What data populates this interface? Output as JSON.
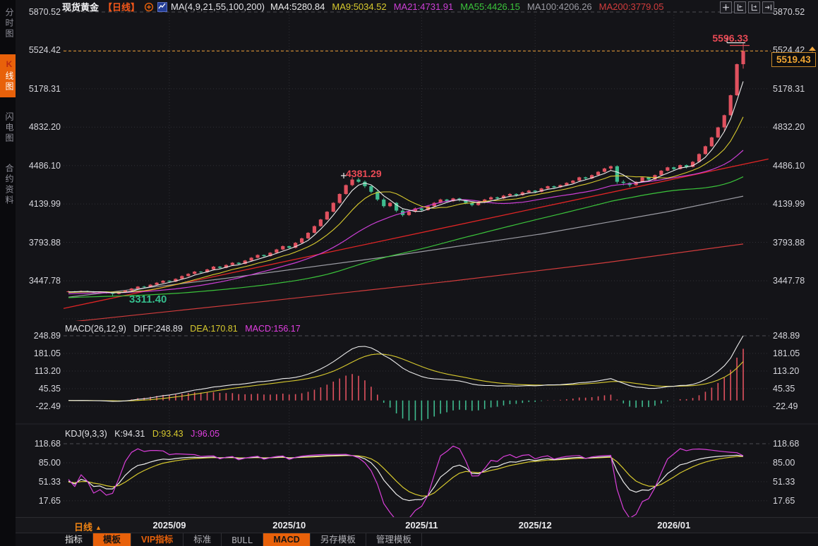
{
  "header": {
    "symbol": "现货黄金",
    "period_tag": "【日线】",
    "ma_group_label": "MA(4,9,21,55,100,200)",
    "ma_items": [
      {
        "label": "MA4:5280.84",
        "color": "#ececec"
      },
      {
        "label": "MA9:5034.52",
        "color": "#d8ca2e"
      },
      {
        "label": "MA21:4731.91",
        "color": "#cc3fd6"
      },
      {
        "label": "MA55:4426.15",
        "color": "#3bc43b"
      },
      {
        "label": "MA100:4206.26",
        "color": "#9c9ca4"
      },
      {
        "label": "MA200:3779.05",
        "color": "#d23c3c"
      }
    ],
    "toolbar_icons": [
      "crosshair-icon",
      "axis-zoom-left-icon",
      "axis-zoom-right-icon",
      "pan-exit-icon"
    ]
  },
  "sidebar": {
    "tabs": [
      {
        "label": "分时图",
        "active": false
      },
      {
        "label": "K线图",
        "active": true
      },
      {
        "label": "闪电图",
        "active": false
      },
      {
        "label": "合约资料",
        "active": false
      }
    ]
  },
  "price_axis": {
    "labels": [
      "5870.52",
      "5524.42",
      "5178.31",
      "4832.20",
      "4486.10",
      "4139.99",
      "3793.88",
      "3447.78"
    ]
  },
  "annotations": {
    "high": "5596.33",
    "peak": "4381.29",
    "low": "3311.40",
    "last_price": "5519.43"
  },
  "macd": {
    "title": "MACD(26,12,9)",
    "diff_label": "DIFF:248.89",
    "dea_label": "DEA:170.81",
    "macd_label": "MACD:156.17",
    "axis": [
      "248.89",
      "181.05",
      "113.20",
      "45.35",
      "-22.49"
    ]
  },
  "kdj": {
    "title": "KDJ(9,3,3)",
    "k_label": "K:94.31",
    "d_label": "D:93.43",
    "j_label": "J:96.05",
    "axis": [
      "118.68",
      "85.00",
      "51.33",
      "17.65"
    ]
  },
  "xaxis": {
    "period_label": "日线",
    "dates": [
      "2025/09",
      "2025/10",
      "2025/11",
      "2025/12",
      "2026/01"
    ]
  },
  "bottom_tabs": [
    {
      "label": "指标",
      "style": "plain"
    },
    {
      "label": "模板",
      "style": "active"
    },
    {
      "label": "VIP指标",
      "style": "vip"
    },
    {
      "label": "标准",
      "style": "dim"
    },
    {
      "label": "BULL",
      "style": "dim mono"
    },
    {
      "label": "MACD",
      "style": "active"
    },
    {
      "label": "另存模板",
      "style": "dim"
    },
    {
      "label": "管理模板",
      "style": "dim"
    }
  ],
  "colors": {
    "background": "#141418",
    "accent_orange": "#e8610a",
    "up_candle": "#e0515f",
    "down_candle": "#3fbc8f",
    "price_line": "#f0a036",
    "annotation_red": "#ea4a55",
    "annotation_green": "#35bd8c"
  },
  "chart_data": {
    "type": "candlestick",
    "title": "现货黄金 日线",
    "indicator_params": {
      "macd": [
        26,
        12,
        9
      ],
      "kdj": [
        9,
        3,
        3
      ],
      "ma_windows": [
        4,
        9,
        21,
        55,
        100,
        200
      ]
    },
    "ylim": [
      3085,
      5870.52
    ],
    "macd_axis_range": [
      -77,
      248.89
    ],
    "kdj_axis_range": [
      -16,
      122
    ],
    "date_tick_indices": [
      16,
      35,
      56,
      74,
      96
    ],
    "candles": [
      [
        3350,
        3358,
        3344,
        3352
      ],
      [
        3352,
        3356,
        3342,
        3348
      ],
      [
        3348,
        3360,
        3346,
        3355
      ],
      [
        3355,
        3359,
        3345,
        3350
      ],
      [
        3350,
        3354,
        3336,
        3342
      ],
      [
        3342,
        3352,
        3338,
        3347
      ],
      [
        3347,
        3350,
        3332,
        3340
      ],
      [
        3340,
        3344,
        3311.4,
        3330
      ],
      [
        3330,
        3350,
        3325,
        3345
      ],
      [
        3345,
        3365,
        3340,
        3360
      ],
      [
        3360,
        3382,
        3355,
        3378
      ],
      [
        3378,
        3400,
        3372,
        3395
      ],
      [
        3395,
        3402,
        3382,
        3390
      ],
      [
        3390,
        3418,
        3386,
        3412
      ],
      [
        3412,
        3436,
        3406,
        3430
      ],
      [
        3430,
        3454,
        3424,
        3448
      ],
      [
        3448,
        3452,
        3432,
        3440
      ],
      [
        3440,
        3470,
        3436,
        3465
      ],
      [
        3465,
        3496,
        3460,
        3490
      ],
      [
        3490,
        3516,
        3484,
        3510
      ],
      [
        3510,
        3536,
        3504,
        3530
      ],
      [
        3530,
        3534,
        3516,
        3525
      ],
      [
        3525,
        3556,
        3520,
        3550
      ],
      [
        3550,
        3581,
        3544,
        3575
      ],
      [
        3575,
        3580,
        3558,
        3565
      ],
      [
        3565,
        3596,
        3560,
        3590
      ],
      [
        3590,
        3616,
        3584,
        3610
      ],
      [
        3610,
        3615,
        3592,
        3600
      ],
      [
        3600,
        3636,
        3596,
        3630
      ],
      [
        3630,
        3661,
        3624,
        3655
      ],
      [
        3655,
        3686,
        3650,
        3680
      ],
      [
        3680,
        3684,
        3662,
        3670
      ],
      [
        3670,
        3706,
        3665,
        3700
      ],
      [
        3700,
        3736,
        3694,
        3730
      ],
      [
        3730,
        3766,
        3724,
        3760
      ],
      [
        3760,
        3764,
        3738,
        3745
      ],
      [
        3745,
        3796,
        3740,
        3790
      ],
      [
        3790,
        3836,
        3784,
        3830
      ],
      [
        3830,
        3886,
        3824,
        3880
      ],
      [
        3880,
        3946,
        3874,
        3940
      ],
      [
        3940,
        4006,
        3934,
        4000
      ],
      [
        4000,
        4076,
        3994,
        4070
      ],
      [
        4070,
        4156,
        4064,
        4150
      ],
      [
        4150,
        4236,
        4142,
        4230
      ],
      [
        4230,
        4316,
        4222,
        4310
      ],
      [
        4310,
        4381.29,
        4300,
        4360
      ],
      [
        4360,
        4376,
        4330,
        4340
      ],
      [
        4340,
        4352,
        4284,
        4300
      ],
      [
        4300,
        4312,
        4236,
        4250
      ],
      [
        4250,
        4262,
        4166,
        4180
      ],
      [
        4180,
        4196,
        4106,
        4120
      ],
      [
        4120,
        4158,
        4112,
        4150
      ],
      [
        4150,
        4156,
        4066,
        4080
      ],
      [
        4080,
        4096,
        4026,
        4040
      ],
      [
        4040,
        4078,
        4032,
        4070
      ],
      [
        4070,
        4108,
        4062,
        4100
      ],
      [
        4100,
        4106,
        4072,
        4085
      ],
      [
        4085,
        4128,
        4080,
        4120
      ],
      [
        4120,
        4158,
        4114,
        4150
      ],
      [
        4150,
        4188,
        4144,
        4180
      ],
      [
        4180,
        4186,
        4152,
        4165
      ],
      [
        4165,
        4196,
        4158,
        4190
      ],
      [
        4190,
        4196,
        4162,
        4175
      ],
      [
        4175,
        4182,
        4138,
        4150
      ],
      [
        4150,
        4158,
        4118,
        4130
      ],
      [
        4130,
        4162,
        4124,
        4155
      ],
      [
        4155,
        4186,
        4148,
        4180
      ],
      [
        4180,
        4208,
        4174,
        4200
      ],
      [
        4200,
        4206,
        4178,
        4190
      ],
      [
        4190,
        4222,
        4184,
        4215
      ],
      [
        4215,
        4238,
        4208,
        4230
      ],
      [
        4230,
        4236,
        4206,
        4220
      ],
      [
        4220,
        4252,
        4214,
        4245
      ],
      [
        4245,
        4268,
        4238,
        4260
      ],
      [
        4260,
        4266,
        4236,
        4250
      ],
      [
        4250,
        4286,
        4244,
        4280
      ],
      [
        4280,
        4306,
        4274,
        4300
      ],
      [
        4300,
        4306,
        4276,
        4290
      ],
      [
        4290,
        4316,
        4284,
        4310
      ],
      [
        4310,
        4336,
        4304,
        4330
      ],
      [
        4330,
        4356,
        4324,
        4350
      ],
      [
        4350,
        4386,
        4344,
        4380
      ],
      [
        4380,
        4386,
        4356,
        4370
      ],
      [
        4370,
        4406,
        4364,
        4400
      ],
      [
        4400,
        4436,
        4394,
        4430
      ],
      [
        4430,
        4466,
        4424,
        4460
      ],
      [
        4460,
        4486,
        4444,
        4480
      ],
      [
        4480,
        4488,
        4322,
        4340
      ],
      [
        4340,
        4356,
        4308,
        4330
      ],
      [
        4330,
        4336,
        4292,
        4310
      ],
      [
        4310,
        4346,
        4304,
        4340
      ],
      [
        4340,
        4386,
        4334,
        4380
      ],
      [
        4380,
        4386,
        4344,
        4360
      ],
      [
        4360,
        4406,
        4354,
        4400
      ],
      [
        4400,
        4446,
        4394,
        4440
      ],
      [
        4440,
        4476,
        4434,
        4470
      ],
      [
        4470,
        4476,
        4440,
        4455
      ],
      [
        4455,
        4496,
        4450,
        4490
      ],
      [
        4490,
        4496,
        4460,
        4475
      ],
      [
        4475,
        4526,
        4470,
        4520
      ],
      [
        4520,
        4596,
        4514,
        4590
      ],
      [
        4590,
        4666,
        4584,
        4660
      ],
      [
        4660,
        4746,
        4654,
        4740
      ],
      [
        4740,
        4836,
        4734,
        4830
      ],
      [
        4830,
        4946,
        4790,
        4940
      ],
      [
        4940,
        5126,
        4934,
        5120
      ],
      [
        5120,
        5406,
        5114,
        5400
      ],
      [
        5400,
        5596.33,
        5360,
        5519.43
      ]
    ],
    "ma100_points": [
      [
        0,
        3300
      ],
      [
        25,
        3470
      ],
      [
        50,
        3660
      ],
      [
        75,
        3870
      ],
      [
        95,
        4070
      ],
      [
        107,
        4210
      ]
    ],
    "ma200_points": [
      [
        0,
        3075
      ],
      [
        30,
        3255
      ],
      [
        60,
        3440
      ],
      [
        85,
        3610
      ],
      [
        107,
        3779
      ]
    ],
    "trendline_points": [
      [
        -0.8,
        3198
      ],
      [
        111,
        4545
      ]
    ],
    "last_price": 5519.43,
    "session_high": 5596.33,
    "session_low": 3311.4
  }
}
